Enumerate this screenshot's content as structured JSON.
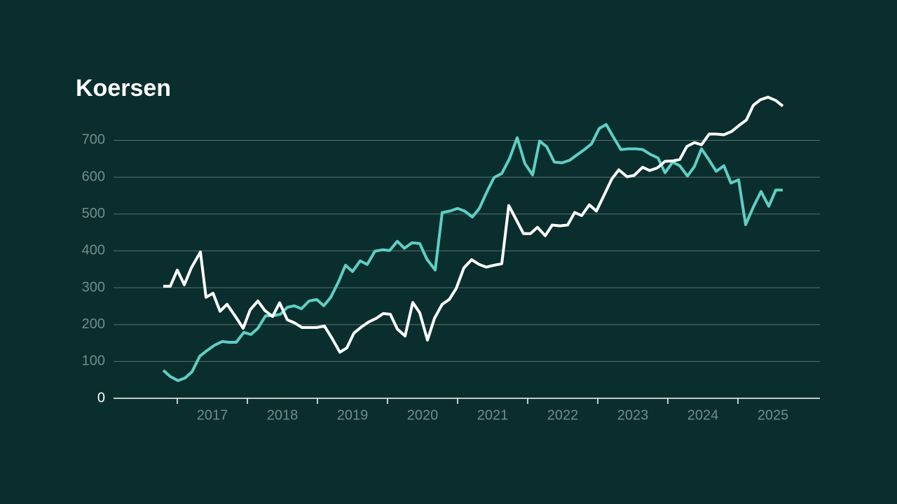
{
  "chart_data": {
    "type": "line",
    "title": "Koersen",
    "xlim": [
      2016.09,
      2026.17
    ],
    "xticks": [
      {
        "value": 2017.5,
        "label": "2017"
      },
      {
        "value": 2018.5,
        "label": "2018"
      },
      {
        "value": 2019.5,
        "label": "2019"
      },
      {
        "value": 2020.5,
        "label": "2020"
      },
      {
        "value": 2021.5,
        "label": "2021"
      },
      {
        "value": 2022.5,
        "label": "2022"
      },
      {
        "value": 2023.5,
        "label": "2023"
      },
      {
        "value": 2024.5,
        "label": "2024"
      },
      {
        "value": 2025.5,
        "label": "2025"
      }
    ],
    "xtick_marks": [
      2017,
      2018,
      2019,
      2020,
      2021,
      2022,
      2023,
      2024,
      2025
    ],
    "ylim": [
      0,
      830
    ],
    "yticks": [
      0,
      100,
      200,
      300,
      400,
      500,
      600,
      700
    ],
    "grid": true,
    "series": [
      {
        "color": "#5ecfc4",
        "x": [
          2016.8,
          2016.9,
          2017.01,
          2017.11,
          2017.21,
          2017.32,
          2017.42,
          2017.53,
          2017.64,
          2017.74,
          2017.84,
          2017.95,
          2018.05,
          2018.15,
          2018.26,
          2018.36,
          2018.47,
          2018.57,
          2018.67,
          2018.77,
          2018.88,
          2018.99,
          2019.09,
          2019.19,
          2019.3,
          2019.4,
          2019.5,
          2019.61,
          2019.71,
          2019.82,
          2019.93,
          2020.03,
          2020.14,
          2020.24,
          2020.35,
          2020.46,
          2020.56,
          2020.68,
          2020.78,
          2020.89,
          2021.0,
          2021.1,
          2021.21,
          2021.31,
          2021.42,
          2021.52,
          2021.63,
          2021.74,
          2021.85,
          2021.96,
          2022.07,
          2022.17,
          2022.27,
          2022.38,
          2022.49,
          2022.6,
          2022.7,
          2022.81,
          2022.91,
          2023.02,
          2023.12,
          2023.21,
          2023.33,
          2023.44,
          2023.54,
          2023.64,
          2023.75,
          2023.86,
          2023.96,
          2024.07,
          2024.17,
          2024.28,
          2024.38,
          2024.48,
          2024.59,
          2024.69,
          2024.8,
          2024.9,
          2025.01,
          2025.11,
          2025.22,
          2025.33,
          2025.44,
          2025.54,
          2025.64
        ],
        "values": [
          76,
          59,
          48,
          55,
          72,
          114,
          129,
          144,
          154,
          152,
          152,
          179,
          173,
          190,
          224,
          224,
          228,
          247,
          251,
          243,
          264,
          268,
          251,
          274,
          316,
          361,
          344,
          373,
          363,
          399,
          403,
          401,
          426,
          407,
          422,
          420,
          378,
          348,
          504,
          508,
          515,
          508,
          492,
          515,
          561,
          599,
          610,
          650,
          707,
          637,
          606,
          698,
          683,
          641,
          639,
          646,
          660,
          675,
          690,
          732,
          743,
          713,
          675,
          677,
          677,
          675,
          662,
          652,
          612,
          641,
          631,
          603,
          629,
          677,
          646,
          616,
          631,
          584,
          593,
          471,
          519,
          561,
          521,
          565,
          565
        ]
      },
      {
        "color": "#ffffff",
        "x": [
          2016.8,
          2016.9,
          2017.0,
          2017.1,
          2017.2,
          2017.33,
          2017.41,
          2017.51,
          2017.61,
          2017.71,
          2017.83,
          2017.94,
          2018.04,
          2018.15,
          2018.25,
          2018.36,
          2018.46,
          2018.57,
          2018.67,
          2018.78,
          2018.88,
          2018.99,
          2019.1,
          2019.21,
          2019.32,
          2019.42,
          2019.52,
          2019.63,
          2019.73,
          2019.84,
          2019.94,
          2020.04,
          2020.14,
          2020.25,
          2020.36,
          2020.46,
          2020.57,
          2020.67,
          2020.78,
          2020.88,
          2020.98,
          2021.09,
          2021.2,
          2021.31,
          2021.41,
          2021.52,
          2021.63,
          2021.73,
          2021.83,
          2021.94,
          2022.04,
          2022.14,
          2022.25,
          2022.35,
          2022.46,
          2022.57,
          2022.67,
          2022.77,
          2022.88,
          2022.98,
          2023.09,
          2023.2,
          2023.3,
          2023.42,
          2023.52,
          2023.64,
          2023.74,
          2023.85,
          2023.96,
          2024.07,
          2024.17,
          2024.27,
          2024.38,
          2024.48,
          2024.59,
          2024.69,
          2024.8,
          2024.91,
          2025.02,
          2025.12,
          2025.22,
          2025.32,
          2025.43,
          2025.54,
          2025.64
        ],
        "values": [
          304,
          304,
          348,
          308,
          354,
          397,
          274,
          285,
          236,
          255,
          222,
          190,
          240,
          264,
          238,
          222,
          259,
          213,
          205,
          192,
          192,
          192,
          196,
          162,
          125,
          137,
          177,
          194,
          207,
          217,
          230,
          228,
          188,
          169,
          260,
          232,
          158,
          217,
          255,
          268,
          298,
          354,
          376,
          363,
          356,
          361,
          365,
          523,
          487,
          447,
          447,
          464,
          441,
          470,
          468,
          470,
          504,
          496,
          525,
          508,
          551,
          595,
          620,
          601,
          605,
          627,
          618,
          625,
          643,
          644,
          648,
          683,
          694,
          688,
          717,
          717,
          715,
          724,
          741,
          755,
          795,
          810,
          817,
          808,
          793
        ]
      }
    ]
  }
}
